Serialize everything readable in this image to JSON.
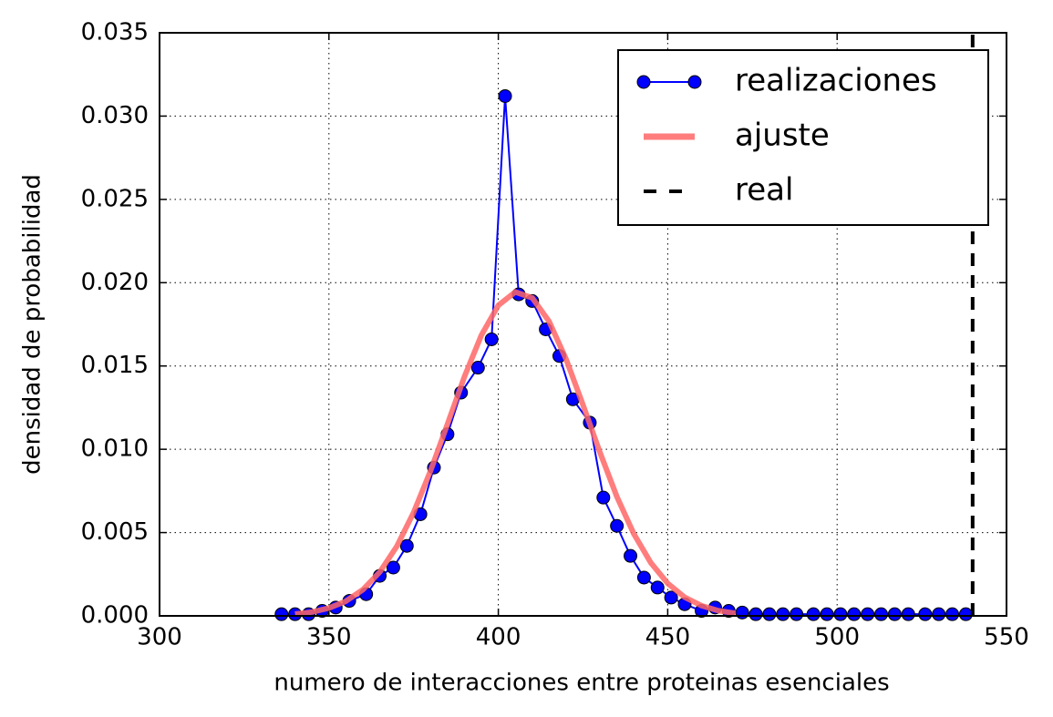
{
  "chart_data": {
    "type": "line",
    "xlabel": "numero de interacciones entre proteinas esenciales",
    "ylabel": "densidad de probabilidad",
    "xlim": [
      300,
      550
    ],
    "xticks": [
      300,
      350,
      400,
      450,
      500,
      550
    ],
    "ylim": [
      0,
      0.035
    ],
    "yticks": [
      {
        "value": 0,
        "label": "0.000"
      },
      {
        "value": 0.005,
        "label": "0.005"
      },
      {
        "value": 0.01,
        "label": "0.010"
      },
      {
        "value": 0.015,
        "label": "0.015"
      },
      {
        "value": 0.02,
        "label": "0.020"
      },
      {
        "value": 0.025,
        "label": "0.025"
      },
      {
        "value": 0.03,
        "label": "0.030"
      },
      {
        "value": 0.035,
        "label": "0.035"
      }
    ],
    "grid": true,
    "legend": "upper right",
    "series": [
      {
        "name": "realizaciones",
        "color": "#0000ff",
        "marker": "o",
        "x": [
          336,
          340,
          344,
          348,
          352,
          356,
          361,
          365,
          369,
          373,
          377,
          381,
          385,
          389,
          394,
          398,
          402,
          406,
          410,
          414,
          418,
          422,
          427,
          431,
          435,
          439,
          443,
          447,
          451,
          455,
          460,
          464,
          468,
          472,
          476,
          480,
          484,
          488,
          493,
          497,
          501,
          505,
          509,
          513,
          517,
          521,
          526,
          530,
          534,
          538
        ],
        "values": [
          0.0001,
          0.0001,
          0.0001,
          0.0003,
          0.0005,
          0.0009,
          0.0013,
          0.0024,
          0.0029,
          0.0042,
          0.0061,
          0.0089,
          0.0109,
          0.0134,
          0.0149,
          0.0166,
          0.0312,
          0.0193,
          0.0189,
          0.0172,
          0.0156,
          0.013,
          0.0116,
          0.0071,
          0.0054,
          0.0036,
          0.0023,
          0.0017,
          0.0011,
          0.0007,
          0.0003,
          0.0005,
          0.0003,
          0.0002,
          0.0001,
          0.0001,
          0.0001,
          0.0001,
          0.0001,
          0.0001,
          0.0001,
          0.0001,
          0.0001,
          0.0001,
          0.0001,
          0.0001,
          0.0001,
          0.0001,
          0.0001,
          0.0001
        ]
      },
      {
        "name": "ajuste",
        "color": "#ff6666",
        "x": [
          340,
          345,
          350,
          355,
          360,
          365,
          370,
          375,
          380,
          385,
          390,
          395,
          400,
          405,
          410,
          415,
          420,
          425,
          430,
          435,
          440,
          445,
          450,
          455,
          460,
          465,
          470
        ],
        "values": [
          0.00011,
          0.00023,
          0.00047,
          0.00088,
          0.00157,
          0.00263,
          0.00416,
          0.00621,
          0.00871,
          0.01152,
          0.01436,
          0.01685,
          0.01864,
          0.01944,
          0.01909,
          0.01767,
          0.01541,
          0.01266,
          0.00981,
          0.00715,
          0.00492,
          0.00319,
          0.00195,
          0.00112,
          0.00061,
          0.00031,
          0.00015
        ]
      },
      {
        "name": "real",
        "color": "#000000",
        "dash": true,
        "x": [
          540,
          540
        ],
        "values": [
          0,
          0.035
        ]
      }
    ]
  }
}
